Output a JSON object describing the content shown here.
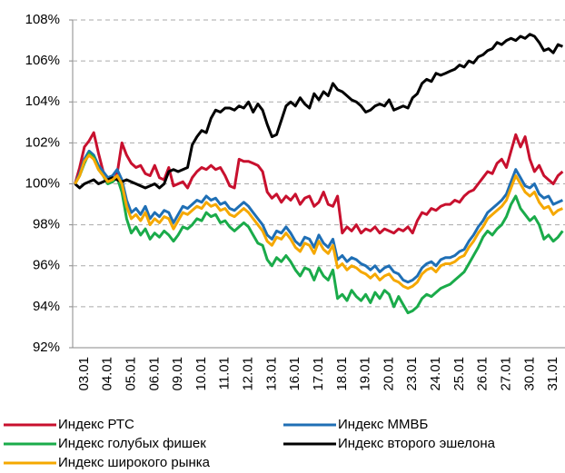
{
  "chart_data": {
    "type": "line",
    "categories": [
      null,
      null,
      "03.01",
      null,
      null,
      null,
      null,
      "04.01",
      null,
      null,
      null,
      null,
      "05.01",
      null,
      null,
      null,
      null,
      "06.01",
      null,
      null,
      null,
      null,
      "09.01",
      null,
      null,
      null,
      null,
      "10.01",
      null,
      null,
      null,
      null,
      "11.01",
      null,
      null,
      null,
      null,
      "12.01",
      null,
      null,
      null,
      null,
      "13.01",
      null,
      null,
      null,
      null,
      "16.01",
      null,
      null,
      null,
      null,
      "17.01",
      null,
      null,
      null,
      null,
      "18.01",
      null,
      null,
      null,
      null,
      "19.01",
      null,
      null,
      null,
      null,
      "20.01",
      null,
      null,
      null,
      null,
      "23.01",
      null,
      null,
      null,
      null,
      "24.01",
      null,
      null,
      null,
      null,
      "25.01",
      null,
      null,
      null,
      null,
      "26.01",
      null,
      null,
      null,
      null,
      "27.01",
      null,
      null,
      null,
      null,
      "30.01",
      null,
      null,
      null,
      null,
      "31.01",
      null,
      null
    ],
    "series": [
      {
        "name": "Индекс РТС",
        "color": "#c8102e",
        "values": [
          100,
          100.8,
          101.8,
          102.1,
          102.5,
          101.5,
          100.6,
          100.2,
          100.1,
          100.5,
          102.0,
          101.4,
          101.0,
          100.8,
          100.9,
          100.5,
          100.4,
          100.9,
          100.3,
          100.2,
          100.8,
          99.9,
          100.0,
          100.1,
          99.8,
          100.3,
          100.6,
          100.8,
          100.7,
          100.9,
          100.7,
          100.8,
          100.4,
          99.9,
          99.8,
          101.2,
          101.1,
          101.1,
          101.0,
          100.9,
          100.6,
          99.6,
          99.3,
          99.5,
          99.1,
          99.4,
          99.2,
          99.5,
          99.0,
          99.3,
          99.4,
          98.9,
          99.1,
          99.6,
          99.0,
          98.9,
          99.4,
          97.6,
          97.9,
          97.7,
          98.0,
          97.6,
          97.8,
          97.7,
          97.9,
          97.6,
          97.8,
          97.7,
          97.6,
          97.8,
          97.7,
          97.9,
          97.6,
          98.2,
          98.6,
          98.5,
          98.8,
          98.7,
          98.9,
          99.0,
          99.0,
          99.2,
          99.1,
          99.4,
          99.6,
          99.7,
          100.0,
          100.3,
          100.6,
          100.5,
          101.0,
          101.2,
          100.8,
          101.6,
          102.4,
          101.8,
          102.3,
          101.2,
          100.6,
          100.9,
          100.4,
          100.2,
          100.0,
          100.4,
          100.6
        ]
      },
      {
        "name": "Индекс ММВБ",
        "color": "#1f6fb5",
        "values": [
          100,
          100.5,
          101.2,
          101.6,
          101.4,
          100.9,
          100.6,
          100.3,
          100.4,
          100.7,
          100.2,
          99.2,
          98.6,
          98.8,
          98.5,
          98.9,
          98.3,
          98.6,
          98.4,
          98.7,
          98.6,
          98.1,
          98.5,
          98.9,
          98.8,
          99.0,
          99.2,
          99.1,
          99.4,
          99.2,
          99.3,
          99.0,
          99.1,
          98.8,
          98.7,
          98.9,
          99.1,
          98.9,
          98.6,
          98.3,
          98.0,
          97.5,
          97.3,
          97.7,
          97.6,
          97.9,
          97.6,
          97.2,
          97.0,
          97.4,
          97.3,
          96.9,
          97.5,
          97.1,
          96.9,
          97.3,
          96.3,
          96.5,
          96.2,
          96.4,
          96.3,
          96.1,
          96.0,
          95.8,
          96.0,
          95.7,
          95.9,
          96.0,
          95.7,
          95.6,
          95.3,
          95.2,
          95.3,
          95.5,
          95.9,
          96.1,
          96.2,
          96.0,
          96.3,
          96.4,
          96.4,
          96.5,
          96.7,
          96.8,
          97.2,
          97.5,
          97.9,
          98.2,
          98.6,
          98.8,
          99.0,
          99.2,
          99.5,
          100.1,
          100.7,
          100.3,
          99.9,
          99.8,
          100.0,
          99.5,
          99.3,
          99.4,
          99.0,
          99.1,
          99.2
        ]
      },
      {
        "name": "Индекс голубых фишек",
        "color": "#1aab4a",
        "values": [
          100,
          100.4,
          101.0,
          101.5,
          101.3,
          100.7,
          100.4,
          100.0,
          100.1,
          100.3,
          99.6,
          98.3,
          97.6,
          97.9,
          97.5,
          97.8,
          97.3,
          97.6,
          97.4,
          97.7,
          97.5,
          97.2,
          97.5,
          97.9,
          97.8,
          98.0,
          98.3,
          98.2,
          98.6,
          98.4,
          98.5,
          98.1,
          98.2,
          97.9,
          97.7,
          97.9,
          98.1,
          97.9,
          97.5,
          97.1,
          97.0,
          96.3,
          96.0,
          96.4,
          96.2,
          96.5,
          96.2,
          95.8,
          95.5,
          95.9,
          95.8,
          95.3,
          95.9,
          95.5,
          95.3,
          95.8,
          94.4,
          94.6,
          94.3,
          94.8,
          94.5,
          94.3,
          94.6,
          94.2,
          94.7,
          94.4,
          94.8,
          94.6,
          94.0,
          94.5,
          94.1,
          93.7,
          93.8,
          94.0,
          94.4,
          94.6,
          94.5,
          94.7,
          94.9,
          95.0,
          95.1,
          95.3,
          95.5,
          95.7,
          96.1,
          96.5,
          96.9,
          97.4,
          97.7,
          97.5,
          97.8,
          98.0,
          98.4,
          99.0,
          99.4,
          98.8,
          98.5,
          98.2,
          98.4,
          98.0,
          97.3,
          97.5,
          97.2,
          97.4,
          97.7
        ]
      },
      {
        "name": "Индекс второго эшелона",
        "color": "#000000",
        "values": [
          100,
          99.8,
          100.0,
          100.1,
          100.2,
          100.0,
          100.1,
          100.2,
          100.3,
          100.2,
          100.1,
          100.2,
          100.1,
          100.0,
          99.9,
          99.8,
          99.9,
          100.0,
          99.8,
          100.0,
          100.6,
          100.7,
          100.6,
          100.7,
          100.8,
          101.9,
          102.3,
          102.6,
          102.5,
          103.2,
          103.6,
          103.5,
          103.7,
          103.7,
          103.6,
          103.8,
          103.7,
          104.0,
          103.5,
          103.9,
          103.6,
          102.9,
          102.3,
          102.4,
          103.1,
          103.8,
          104.0,
          103.8,
          104.2,
          103.9,
          103.7,
          104.4,
          104.1,
          104.5,
          104.3,
          104.9,
          104.6,
          104.5,
          104.3,
          104.1,
          104.0,
          103.8,
          103.5,
          103.6,
          103.8,
          103.9,
          103.8,
          104.1,
          103.6,
          103.7,
          103.8,
          103.7,
          104.2,
          104.4,
          104.9,
          105.1,
          105.0,
          105.4,
          105.3,
          105.4,
          105.5,
          105.6,
          105.8,
          105.7,
          106.0,
          105.9,
          106.2,
          106.3,
          106.5,
          106.6,
          106.9,
          106.8,
          107.0,
          107.1,
          107.0,
          107.2,
          107.1,
          107.3,
          107.2,
          106.9,
          106.5,
          106.6,
          106.4,
          106.8,
          106.7
        ]
      },
      {
        "name": "Индекс широкого рынка",
        "color": "#f5a800",
        "values": [
          100,
          100.4,
          101.1,
          101.4,
          101.2,
          100.7,
          100.4,
          100.1,
          100.2,
          100.4,
          100.0,
          98.9,
          98.3,
          98.5,
          98.2,
          98.6,
          98.0,
          98.3,
          98.1,
          98.4,
          98.3,
          97.8,
          98.2,
          98.6,
          98.5,
          98.7,
          98.9,
          98.8,
          99.1,
          98.9,
          99.0,
          98.7,
          98.8,
          98.5,
          98.4,
          98.6,
          98.8,
          98.6,
          98.3,
          98.0,
          97.7,
          97.2,
          97.0,
          97.4,
          97.3,
          97.6,
          97.3,
          96.9,
          96.7,
          97.1,
          97.0,
          96.6,
          97.2,
          96.8,
          96.6,
          97.0,
          95.9,
          96.1,
          95.8,
          96.0,
          95.9,
          95.7,
          95.6,
          95.4,
          95.6,
          95.3,
          95.5,
          95.6,
          95.3,
          95.2,
          95.0,
          94.9,
          95.0,
          95.2,
          95.6,
          95.8,
          95.9,
          95.7,
          96.0,
          96.1,
          96.1,
          96.2,
          96.4,
          96.5,
          96.9,
          97.2,
          97.6,
          97.9,
          98.3,
          98.5,
          98.7,
          98.9,
          99.2,
          99.8,
          100.4,
          100.0,
          99.6,
          99.4,
          99.6,
          99.1,
          98.8,
          98.9,
          98.5,
          98.7,
          98.8
        ]
      }
    ],
    "ylim": [
      92,
      108
    ],
    "yticks": [
      {
        "value": 92,
        "label": "92%"
      },
      {
        "value": 94,
        "label": "94%"
      },
      {
        "value": 96,
        "label": "96%"
      },
      {
        "value": 98,
        "label": "98%"
      },
      {
        "value": 100,
        "label": "100%"
      },
      {
        "value": 102,
        "label": "102%"
      },
      {
        "value": 104,
        "label": "104%"
      },
      {
        "value": 106,
        "label": "106%"
      },
      {
        "value": 108,
        "label": "108%"
      }
    ],
    "grid": true,
    "legend": "bottom"
  }
}
